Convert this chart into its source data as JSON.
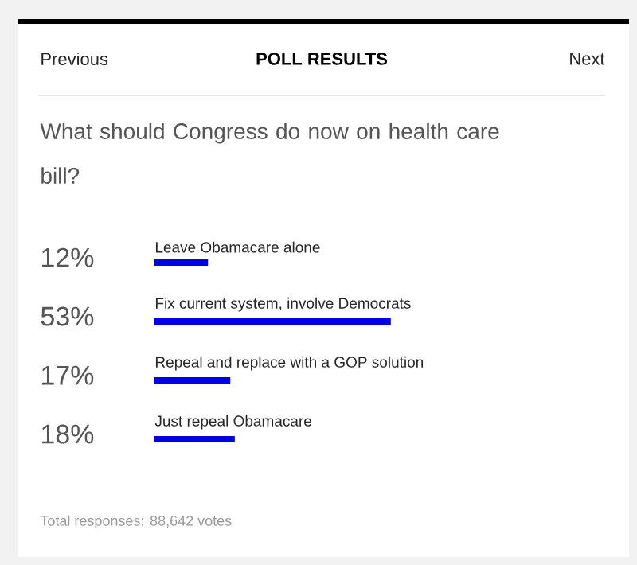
{
  "chart_data": {
    "type": "bar",
    "orientation": "horizontal",
    "title": "POLL RESULTS",
    "subtitle": "What should Congress do now on health care bill?",
    "categories": [
      "Leave Obamacare alone",
      "Fix current system, involve Democrats",
      "Repeal and replace with a GOP solution",
      "Just repeal Obamacare"
    ],
    "values": [
      12,
      53,
      17,
      18
    ],
    "value_labels": [
      "12%",
      "53%",
      "17%",
      "18%"
    ],
    "color": "#0000e0",
    "annotations": [
      "Previous",
      "Next",
      "Total responses: 88,642 votes"
    ]
  }
}
